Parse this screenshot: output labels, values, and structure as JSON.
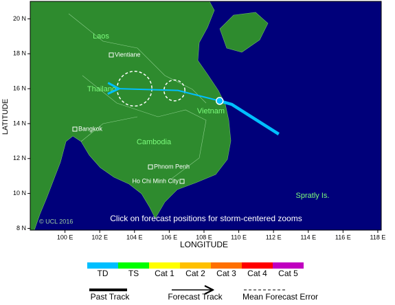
{
  "map": {
    "xlabel": "LONGITUDE",
    "ylabel": "LATITUDE",
    "xlim": [
      98,
      118.2
    ],
    "ylim": [
      7.9,
      21
    ],
    "xticks": [
      {
        "value": 100,
        "label": "100 E"
      },
      {
        "value": 102,
        "label": "102 E"
      },
      {
        "value": 104,
        "label": "104 E"
      },
      {
        "value": 106,
        "label": "106 E"
      },
      {
        "value": 108,
        "label": "108 E"
      },
      {
        "value": 110,
        "label": "110 E"
      },
      {
        "value": 112,
        "label": "112 E"
      },
      {
        "value": 114,
        "label": "114 E"
      },
      {
        "value": 116,
        "label": "116 E"
      },
      {
        "value": 118,
        "label": "118 E"
      }
    ],
    "yticks": [
      {
        "value": 8,
        "label": "8 N"
      },
      {
        "value": 10,
        "label": "10 N"
      },
      {
        "value": 12,
        "label": "12 N"
      },
      {
        "value": 14,
        "label": "14 N"
      },
      {
        "value": 16,
        "label": "16 N"
      },
      {
        "value": 18,
        "label": "18 N"
      },
      {
        "value": 20,
        "label": "20 N"
      }
    ],
    "regions": [
      "Laos",
      "Thailand",
      "Vietnam",
      "Cambodia",
      "Spratly Is."
    ],
    "cities": [
      "Vientiane",
      "Bangkok",
      "Phnom Penh",
      "Ho Chi Minh City"
    ],
    "copyright": "© UCL 2016",
    "hint": "Click on forecast positions for storm-centered zooms",
    "past_track": {
      "lon": [
        112.3,
        109.6,
        108.9
      ],
      "lat": [
        13.4,
        15.1,
        15.3
      ],
      "color": "#00bfff"
    },
    "forecast_track": {
      "lon": [
        108.9,
        106.5,
        103.1
      ],
      "lat": [
        15.3,
        15.9,
        16.0
      ],
      "color": "#00bfff"
    },
    "error_circles": {
      "lon": [
        106.3,
        104.0
      ],
      "lat": [
        15.9,
        16.0
      ],
      "radius": [
        0.6,
        1.0
      ]
    }
  },
  "legend": {
    "intensity": [
      {
        "label": "TD",
        "color": "#00bfff"
      },
      {
        "label": "TS",
        "color": "#00ff00"
      },
      {
        "label": "Cat 1",
        "color": "#ffff00"
      },
      {
        "label": "Cat 2",
        "color": "#ffc000"
      },
      {
        "label": "Cat 3",
        "color": "#ff7000"
      },
      {
        "label": "Cat 4",
        "color": "#ff0000"
      },
      {
        "label": "Cat 5",
        "color": "#c000c0"
      }
    ],
    "lines": [
      "Past Track",
      "Forecast Track",
      "Mean Forecast Error"
    ]
  }
}
